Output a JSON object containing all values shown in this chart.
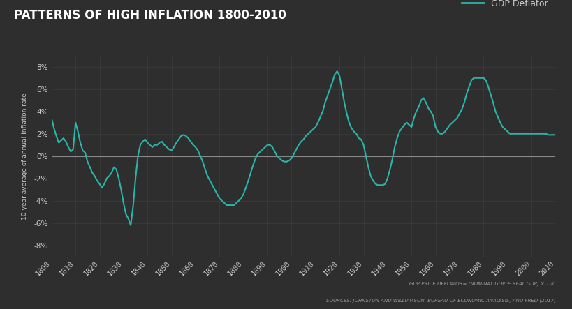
{
  "title": "PATTERNS OF HIGH INFLATION 1800-2010",
  "ylabel": "10-year average of annual inflation rate",
  "legend_label": "GDP Deflator",
  "source_text1": "GDP PRICE DEFLATOR= (NOMINAL GDP ÷ REAL GDP) × 100",
  "source_text2": "SOURCES: JOHNSTON AND WILLIAMSON, BUREAU OF ECONOMIC ANALYSIS, AND FRED (2017)",
  "bg_color": "#2e2e2e",
  "line_color": "#2ab5aa",
  "grid_color": "#3d3d3d",
  "zero_line_color": "#888888",
  "text_color": "#cccccc",
  "title_color": "#ffffff",
  "xlim": [
    1800,
    2010
  ],
  "ylim": [
    -0.09,
    0.09
  ],
  "yticks": [
    -0.08,
    -0.06,
    -0.04,
    -0.02,
    0.0,
    0.02,
    0.04,
    0.06,
    0.08
  ],
  "xticks": [
    1800,
    1810,
    1820,
    1830,
    1840,
    1850,
    1860,
    1870,
    1880,
    1890,
    1900,
    1910,
    1920,
    1930,
    1940,
    1950,
    1960,
    1970,
    1980,
    1990,
    2000,
    2010
  ],
  "years": [
    1800,
    1801,
    1802,
    1803,
    1804,
    1805,
    1806,
    1807,
    1808,
    1809,
    1810,
    1811,
    1812,
    1813,
    1814,
    1815,
    1816,
    1817,
    1818,
    1819,
    1820,
    1821,
    1822,
    1823,
    1824,
    1825,
    1826,
    1827,
    1828,
    1829,
    1830,
    1831,
    1832,
    1833,
    1834,
    1835,
    1836,
    1837,
    1838,
    1839,
    1840,
    1841,
    1842,
    1843,
    1844,
    1845,
    1846,
    1847,
    1848,
    1849,
    1850,
    1851,
    1852,
    1853,
    1854,
    1855,
    1856,
    1857,
    1858,
    1859,
    1860,
    1861,
    1862,
    1863,
    1864,
    1865,
    1866,
    1867,
    1868,
    1869,
    1870,
    1871,
    1872,
    1873,
    1874,
    1875,
    1876,
    1877,
    1878,
    1879,
    1880,
    1881,
    1882,
    1883,
    1884,
    1885,
    1886,
    1887,
    1888,
    1889,
    1890,
    1891,
    1892,
    1893,
    1894,
    1895,
    1896,
    1897,
    1898,
    1899,
    1900,
    1901,
    1902,
    1903,
    1904,
    1905,
    1906,
    1907,
    1908,
    1909,
    1910,
    1911,
    1912,
    1913,
    1914,
    1915,
    1916,
    1917,
    1918,
    1919,
    1920,
    1921,
    1922,
    1923,
    1924,
    1925,
    1926,
    1927,
    1928,
    1929,
    1930,
    1931,
    1932,
    1933,
    1934,
    1935,
    1936,
    1937,
    1938,
    1939,
    1940,
    1941,
    1942,
    1943,
    1944,
    1945,
    1946,
    1947,
    1948,
    1949,
    1950,
    1951,
    1952,
    1953,
    1954,
    1955,
    1956,
    1957,
    1958,
    1959,
    1960,
    1961,
    1962,
    1963,
    1964,
    1965,
    1966,
    1967,
    1968,
    1969,
    1970,
    1971,
    1972,
    1973,
    1974,
    1975,
    1976,
    1977,
    1978,
    1979,
    1980,
    1981,
    1982,
    1983,
    1984,
    1985,
    1986,
    1987,
    1988,
    1989,
    1990,
    1991,
    1992,
    1993,
    1994,
    1995,
    1996,
    1997,
    1998,
    1999,
    2000,
    2001,
    2002,
    2003,
    2004,
    2005,
    2006,
    2007,
    2008,
    2009,
    2010
  ],
  "values": [
    0.034,
    0.025,
    0.018,
    0.012,
    0.014,
    0.016,
    0.013,
    0.008,
    0.004,
    0.006,
    0.03,
    0.022,
    0.012,
    0.005,
    0.003,
    -0.005,
    -0.01,
    -0.015,
    -0.018,
    -0.022,
    -0.025,
    -0.028,
    -0.025,
    -0.02,
    -0.018,
    -0.015,
    -0.01,
    -0.012,
    -0.02,
    -0.03,
    -0.042,
    -0.052,
    -0.056,
    -0.062,
    -0.045,
    -0.02,
    0.0,
    0.01,
    0.013,
    0.015,
    0.012,
    0.01,
    0.008,
    0.01,
    0.01,
    0.012,
    0.013,
    0.01,
    0.008,
    0.006,
    0.005,
    0.008,
    0.012,
    0.015,
    0.018,
    0.019,
    0.018,
    0.016,
    0.013,
    0.01,
    0.008,
    0.005,
    0.0,
    -0.005,
    -0.012,
    -0.018,
    -0.022,
    -0.026,
    -0.03,
    -0.034,
    -0.038,
    -0.04,
    -0.042,
    -0.044,
    -0.044,
    -0.044,
    -0.044,
    -0.042,
    -0.04,
    -0.038,
    -0.034,
    -0.028,
    -0.022,
    -0.015,
    -0.008,
    -0.002,
    0.002,
    0.004,
    0.006,
    0.008,
    0.01,
    0.01,
    0.008,
    0.004,
    0.0,
    -0.002,
    -0.004,
    -0.005,
    -0.005,
    -0.004,
    -0.002,
    0.002,
    0.006,
    0.01,
    0.013,
    0.015,
    0.018,
    0.02,
    0.022,
    0.024,
    0.026,
    0.03,
    0.035,
    0.04,
    0.048,
    0.054,
    0.06,
    0.066,
    0.073,
    0.076,
    0.072,
    0.06,
    0.048,
    0.038,
    0.03,
    0.025,
    0.022,
    0.02,
    0.016,
    0.015,
    0.01,
    0.0,
    -0.01,
    -0.018,
    -0.022,
    -0.025,
    -0.026,
    -0.026,
    -0.026,
    -0.025,
    -0.02,
    -0.012,
    -0.003,
    0.008,
    0.016,
    0.022,
    0.025,
    0.028,
    0.03,
    0.028,
    0.026,
    0.034,
    0.04,
    0.044,
    0.05,
    0.052,
    0.048,
    0.043,
    0.04,
    0.036,
    0.026,
    0.022,
    0.02,
    0.02,
    0.022,
    0.025,
    0.028,
    0.03,
    0.032,
    0.034,
    0.038,
    0.042,
    0.048,
    0.056,
    0.062,
    0.068,
    0.07,
    0.07,
    0.07,
    0.07,
    0.07,
    0.068,
    0.062,
    0.055,
    0.048,
    0.04,
    0.035,
    0.03,
    0.026,
    0.024,
    0.022,
    0.02,
    0.02,
    0.02,
    0.02,
    0.02,
    0.02,
    0.02,
    0.02,
    0.02,
    0.02,
    0.02,
    0.02,
    0.02,
    0.02,
    0.02,
    0.02,
    0.019,
    0.019,
    0.019,
    0.019
  ]
}
